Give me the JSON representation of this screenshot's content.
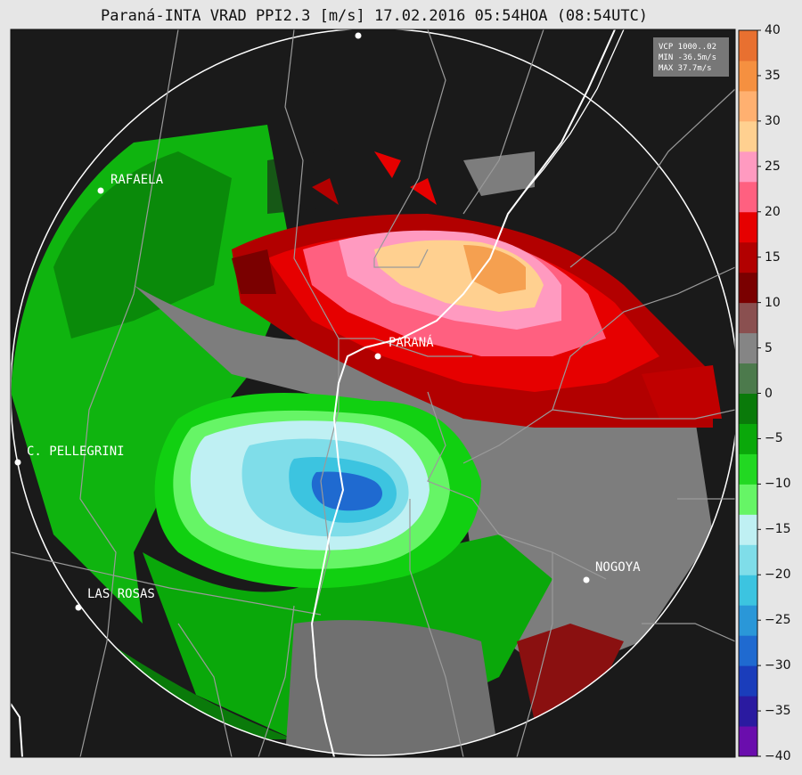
{
  "title": "Paraná-INTA VRAD PPI2.3 [m/s] 17.02.2016 05:54HOA (08:54UTC)",
  "info_box": [
    "VCP 1000..02",
    "MIN -36.5m/s",
    "MAX 37.7m/s"
  ],
  "cities": [
    {
      "name": "RAFAELA"
    },
    {
      "name": "PARANÁ"
    },
    {
      "name": "C. PELLEGRINI"
    },
    {
      "name": "LAS ROSAS"
    },
    {
      "name": "NOGOYA"
    }
  ],
  "chart_data": {
    "type": "heatmap",
    "title": "Paraná-INTA VRAD PPI2.3 [m/s] 17.02.2016 05:54HOA (08:54UTC)",
    "variable": "radial velocity",
    "units": "m/s",
    "scan": "PPI2.3",
    "date": "17.02.2016",
    "time_local": "05:54HOA",
    "time_utc": "08:54UTC",
    "min": -36.5,
    "max": 37.7,
    "colorbar": {
      "range": [
        -40,
        40
      ],
      "ticks": [
        "40",
        "35",
        "30",
        "25",
        "20",
        "15",
        "10",
        "5",
        "0",
        "−5",
        "−10",
        "−15",
        "−20",
        "−25",
        "−30",
        "−35",
        "−40"
      ],
      "colors": [
        "#6a0dad",
        "#2a1aa0",
        "#1a3dbb",
        "#1f6ad0",
        "#2a97d8",
        "#3cc4e0",
        "#7fdde9",
        "#bff0f3",
        "#66f566",
        "#22d822",
        "#0aa80a",
        "#0a7a0a",
        "#4c7a4c",
        "#858585",
        "#8a5050",
        "#7a0000",
        "#b20000",
        "#e60000",
        "#ff6080",
        "#ff9ac0",
        "#ffd090",
        "#ffb070",
        "#f59040",
        "#e87030"
      ]
    }
  }
}
